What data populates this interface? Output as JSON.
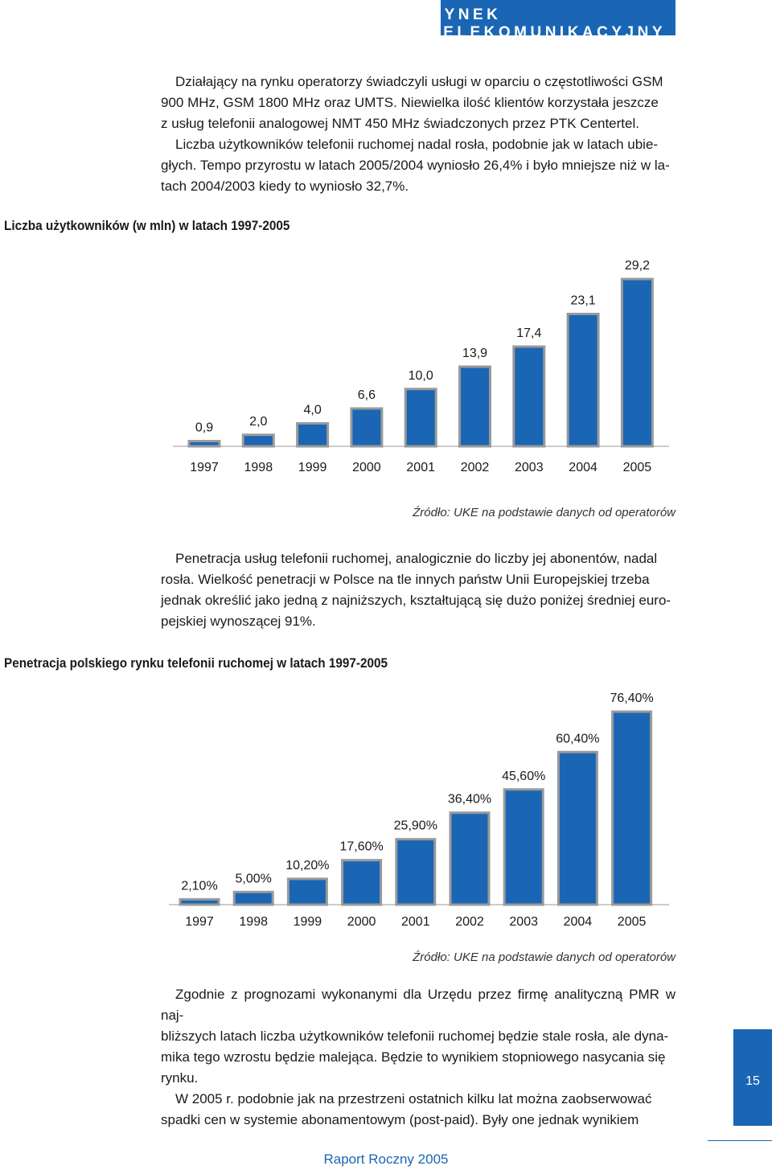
{
  "header": {
    "title": "RYNEK TELEKOMUNIKACYJNY"
  },
  "paragraphs": {
    "p1": [
      "Działający na rynku operatorzy świadczyli usługi w oparciu o częstotliwości GSM",
      "900 MHz, GSM 1800 MHz oraz UMTS. Niewielka ilość klientów korzystała jeszcze",
      "z usług telefonii analogowej NMT 450 MHz świadczonych przez PTK Centertel.",
      "Liczba użytkowników telefonii ruchomej nadal rosła, podobnie jak w latach ubie-",
      "głych. Tempo przyrostu w latach 2005/2004 wyniosło 26,4% i było mniejsze niż w la-",
      "tach 2004/2003 kiedy to wyniosło 32,7%."
    ],
    "p2": [
      "Penetracja usług telefonii ruchomej, analogicznie do liczby jej abonentów, nadal",
      "rosła. Wielkość penetracji w Polsce na tle innych państw Unii Europejskiej trzeba",
      "jednak określić jako jedną z najniższych, kształtującą się dużo poniżej średniej euro-",
      "pejskiej wynoszącej 91%."
    ],
    "p3": [
      "Zgodnie z prognozami wykonanymi dla Urzędu przez firmę analityczną PMR w naj-",
      "bliższych latach liczba użytkowników telefonii ruchomej będzie stale rosła, ale dyna-",
      "mika tego wzrostu będzie malejąca. Będzie to wynikiem stopniowego nasycania się",
      "rynku.",
      "W 2005 r. podobnie jak na przestrzeni ostatnich kilku lat można zaobserwować",
      "spadki cen w systemie abonamentowym (post-paid). Były one jednak wynikiem"
    ]
  },
  "chart1_title": "Liczba użytkowników (w mln) w latach 1997-2005",
  "chart2_title": "Penetracja polskiego rynku telefonii ruchomej w latach 1997-2005",
  "source1": "Źródło: UKE na podstawie danych od operatorów",
  "source2": "Źródło: UKE na podstawie danych od operatorów",
  "page_number": "15",
  "footer": "Raport Roczny 2005",
  "colors": {
    "bar_fill": "#1a66b4",
    "bar_outline": "#9a9a9a",
    "brand": "#1a66b4"
  },
  "chart_data": [
    {
      "type": "bar",
      "title": "Liczba użytkowników (w mln) w latach 1997-2005",
      "categories": [
        "1997",
        "1998",
        "1999",
        "2000",
        "2001",
        "2002",
        "2003",
        "2004",
        "2005"
      ],
      "values": [
        0.9,
        2.0,
        4.0,
        6.6,
        10.0,
        13.9,
        17.4,
        23.1,
        29.2
      ],
      "labels": [
        "0,9",
        "2,0",
        "4,0",
        "6,6",
        "10,0",
        "13,9",
        "17,4",
        "23,1",
        "29,2"
      ],
      "ylim": [
        0,
        29.2
      ],
      "grid": false,
      "legend": false
    },
    {
      "type": "bar",
      "title": "Penetracja polskiego rynku telefonii ruchomej w latach 1997-2005",
      "categories": [
        "1997",
        "1998",
        "1999",
        "2000",
        "2001",
        "2002",
        "2003",
        "2004",
        "2005"
      ],
      "values": [
        2.1,
        5.0,
        10.2,
        17.6,
        25.9,
        36.4,
        45.6,
        60.4,
        76.4
      ],
      "labels": [
        "2,10%",
        "5,00%",
        "10,20%",
        "17,60%",
        "25,90%",
        "36,40%",
        "45,60%",
        "60,40%",
        "76,40%"
      ],
      "ylim": [
        0,
        76.4
      ],
      "grid": false,
      "legend": false
    }
  ]
}
